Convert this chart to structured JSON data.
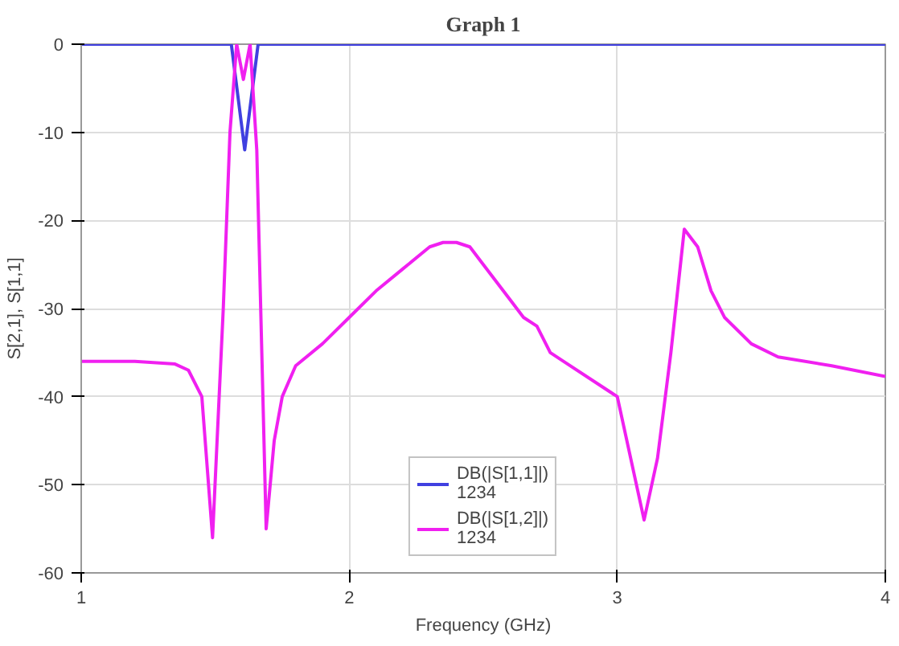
{
  "chart_data": {
    "type": "line",
    "title": "Graph 1",
    "xlabel": "Frequency (GHz)",
    "ylabel": "S[2,1], S[1,1]",
    "xlim": [
      1,
      4
    ],
    "ylim": [
      -60,
      0
    ],
    "xticks": [
      1,
      2,
      3,
      4
    ],
    "yticks": [
      0,
      -10,
      -20,
      -30,
      -40,
      -50,
      -60
    ],
    "grid": true,
    "legend": "bottom",
    "marker": "none",
    "line_style": "solid",
    "series": [
      {
        "name": "DB(|S[1,1]|)\n1234",
        "color": "#4040e0",
        "x": [
          1,
          1.56,
          1.585,
          1.61,
          1.635,
          1.66,
          4
        ],
        "values": [
          0,
          0,
          -6,
          -12,
          -6,
          0,
          0
        ]
      },
      {
        "name": "DB(|S[1,2]|)\n1234",
        "color": "#f020f0",
        "x": [
          1,
          1.2,
          1.35,
          1.4,
          1.45,
          1.49,
          1.53,
          1.555,
          1.58,
          1.605,
          1.63,
          1.655,
          1.69,
          1.72,
          1.75,
          1.8,
          1.9,
          2.0,
          2.1,
          2.2,
          2.3,
          2.35,
          2.4,
          2.45,
          2.5,
          2.6,
          2.65,
          2.7,
          2.75,
          2.8,
          3.0,
          3.1,
          3.15,
          3.2,
          3.25,
          3.3,
          3.35,
          3.4,
          3.5,
          3.6,
          3.8,
          4.0
        ],
        "values": [
          -36,
          -36,
          -36.3,
          -37,
          -40,
          -56,
          -30,
          -10,
          0,
          -4,
          0,
          -12,
          -55,
          -45,
          -40,
          -36.5,
          -34,
          -31,
          -28,
          -25.5,
          -23,
          -22.5,
          -22.5,
          -23,
          -25,
          -29,
          -31,
          -32,
          -35,
          -36,
          -40,
          -54,
          -47,
          -35,
          -21,
          -23,
          -28,
          -31,
          -34,
          -35.5,
          -36.5,
          -37.7
        ]
      }
    ]
  }
}
